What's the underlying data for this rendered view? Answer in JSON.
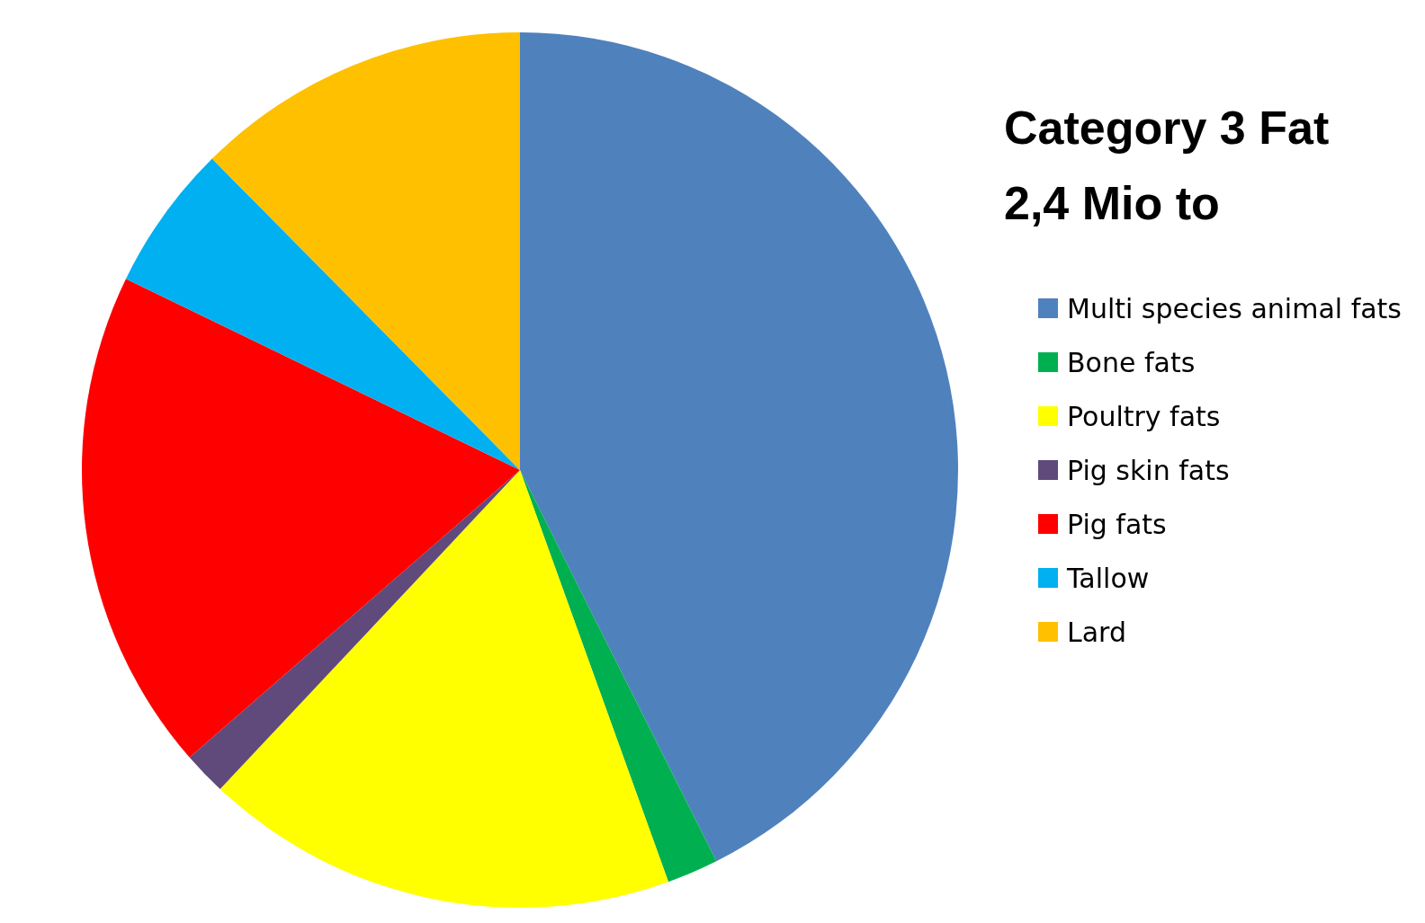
{
  "chart_data": {
    "type": "pie",
    "title": "Category 3 Fat 2,4 Mio to",
    "categories": [
      "Multi species animal fats",
      "Bone fats",
      "Poultry fats",
      "Pig skin fats",
      "Pig fats",
      "Tallow",
      "Lard"
    ],
    "values": [
      42.6,
      1.9,
      17.5,
      1.6,
      18.6,
      5.4,
      12.4
    ],
    "colors": [
      "#4f81bd",
      "#00b050",
      "#ffff00",
      "#604a7b",
      "#ff0000",
      "#00b0f0",
      "#ffc000"
    ],
    "legend": "right"
  }
}
